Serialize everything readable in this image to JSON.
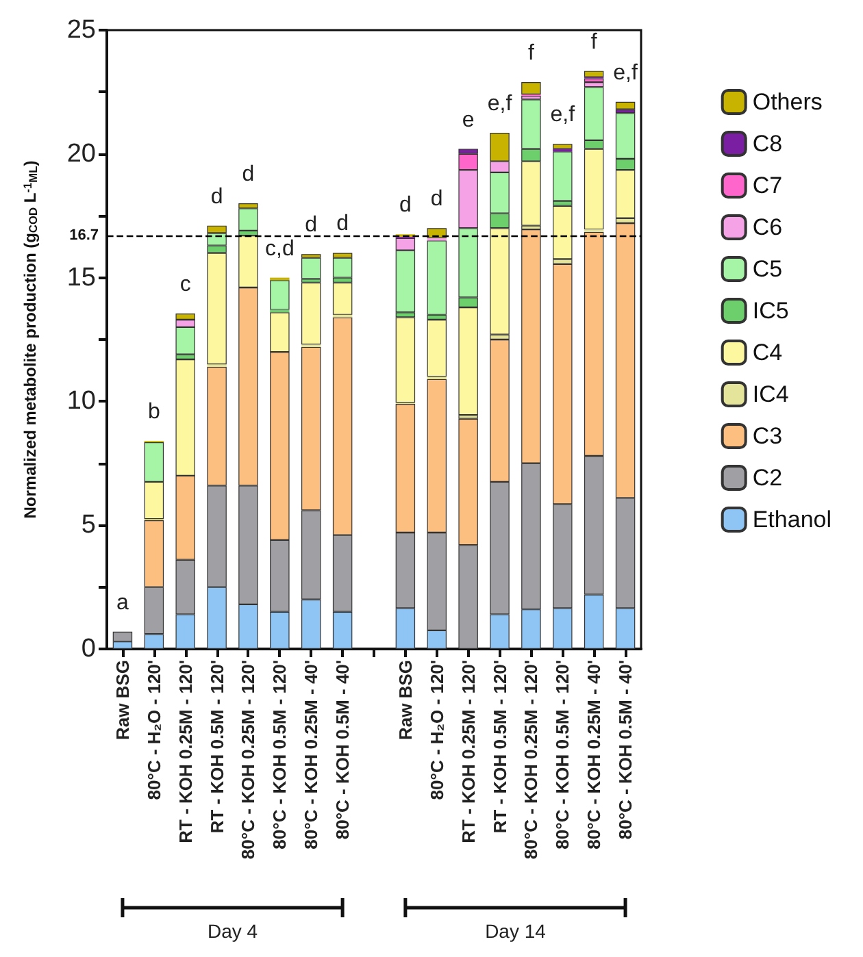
{
  "chart_data": {
    "type": "bar",
    "stacked": true,
    "ylabel": "Normalized metabolite production (g$_{COD}$ L$^{-1}$$_{ML}$)",
    "categories": [
      "Raw BSG",
      "80°C - H₂O - 120'",
      "RT - KOH 0.25M - 120'",
      "RT - KOH 0.5M - 120'",
      "80°C - KOH 0.25M - 120'",
      "80°C - KOH 0.5M - 120'",
      "80°C - KOH 0.25M - 40'",
      "80°C - KOH 0.5M - 40'",
      null,
      "Raw BSG",
      "80°C - H₂O - 120'",
      "RT - KOH 0.25M - 120'",
      "RT - KOH 0.5M - 120'",
      "80°C - KOH 0.25M - 120'",
      "80°C - KOH 0.5M - 120'",
      "80°C - KOH 0.25M - 40'",
      "80°C - KOH 0.5M - 40'"
    ],
    "series": [
      {
        "name": "Ethanol",
        "color": "#8ec5f5",
        "values": [
          0.3,
          0.6,
          1.4,
          2.5,
          1.8,
          1.5,
          2.0,
          1.5,
          null,
          1.65,
          0.75,
          0,
          1.4,
          1.6,
          1.65,
          2.2,
          1.65
        ]
      },
      {
        "name": "C2",
        "color": "#a0a0a4",
        "values": [
          0.4,
          1.9,
          2.2,
          4.1,
          4.8,
          2.9,
          3.6,
          3.1,
          null,
          3.05,
          3.95,
          4.2,
          5.35,
          5.9,
          4.2,
          5.6,
          4.45
        ]
      },
      {
        "name": "C3",
        "color": "#fdbf80",
        "values": [
          0,
          2.7,
          3.4,
          4.8,
          8.0,
          7.6,
          6.6,
          8.8,
          null,
          5.2,
          6.2,
          5.1,
          5.75,
          9.45,
          9.7,
          9.05,
          11.1
        ]
      },
      {
        "name": "IC4",
        "color": "#e4e49a",
        "values": [
          0,
          0.05,
          0,
          0.1,
          0,
          0,
          0.1,
          0.1,
          null,
          0.05,
          0.1,
          0.15,
          0.2,
          0.15,
          0.2,
          0.1,
          0.2
        ]
      },
      {
        "name": "C4",
        "color": "#fdf7a0",
        "values": [
          0,
          1.5,
          4.7,
          4.5,
          2.1,
          1.6,
          2.5,
          1.3,
          null,
          3.45,
          2.3,
          4.35,
          4.3,
          2.6,
          2.15,
          3.25,
          1.95
        ]
      },
      {
        "name": "IC5",
        "color": "#6ccf6c",
        "values": [
          0,
          0,
          0.2,
          0.3,
          0.2,
          0.1,
          0.15,
          0.2,
          null,
          0.2,
          0.2,
          0.4,
          0.6,
          0.5,
          0.2,
          0.35,
          0.45
        ]
      },
      {
        "name": "C5",
        "color": "#a6f5a6",
        "values": [
          0,
          1.6,
          1.1,
          0.5,
          0.9,
          1.2,
          0.85,
          0.8,
          null,
          2.5,
          3.0,
          2.8,
          1.65,
          2.0,
          2.0,
          2.15,
          1.85
        ]
      },
      {
        "name": "C6",
        "color": "#f5a3e6",
        "values": [
          0,
          0,
          0.3,
          0,
          0,
          0,
          0,
          0,
          null,
          0.5,
          0.1,
          2.35,
          0.45,
          0.15,
          0,
          0.2,
          0
        ]
      },
      {
        "name": "C7",
        "color": "#ff66cc",
        "values": [
          0,
          0,
          0,
          0,
          0,
          0,
          0,
          0,
          null,
          0,
          0,
          0.65,
          0,
          0.05,
          0,
          0.15,
          0
        ]
      },
      {
        "name": "C8",
        "color": "#7b1fa2",
        "values": [
          0,
          0,
          0,
          0,
          0,
          0,
          0,
          0,
          null,
          0.05,
          0,
          0.2,
          0,
          0,
          0.1,
          0.05,
          0.15
        ]
      },
      {
        "name": "Others",
        "color": "#c8b400",
        "values": [
          0,
          0.05,
          0.25,
          0.3,
          0.2,
          0.1,
          0.15,
          0.2,
          null,
          0.1,
          0.4,
          0,
          1.15,
          0.5,
          0.2,
          0.25,
          0.3
        ]
      }
    ],
    "ylim": [
      0,
      25
    ],
    "yticks": [
      0,
      {
        "value": 2.5,
        "label": null
      },
      5,
      {
        "value": 7.5,
        "label": null
      },
      10,
      {
        "value": 12.5,
        "label": null
      },
      15,
      {
        "value": 17.5,
        "label": null
      },
      20,
      {
        "value": 22.5,
        "label": null
      },
      25
    ],
    "ref_lines": [
      {
        "axis": "y",
        "value": 16.7,
        "label": "16.7",
        "color": "#000000",
        "line_style": "dashed"
      }
    ],
    "annotations": [
      "a",
      "b",
      "c",
      "d",
      "d",
      "c,d",
      "d",
      "d",
      "d",
      "d",
      "e",
      "e,f",
      "f",
      "e,f",
      "f",
      "e,f",
      "Day 4",
      "Day 14"
    ],
    "legend": "right",
    "grid": false
  }
}
